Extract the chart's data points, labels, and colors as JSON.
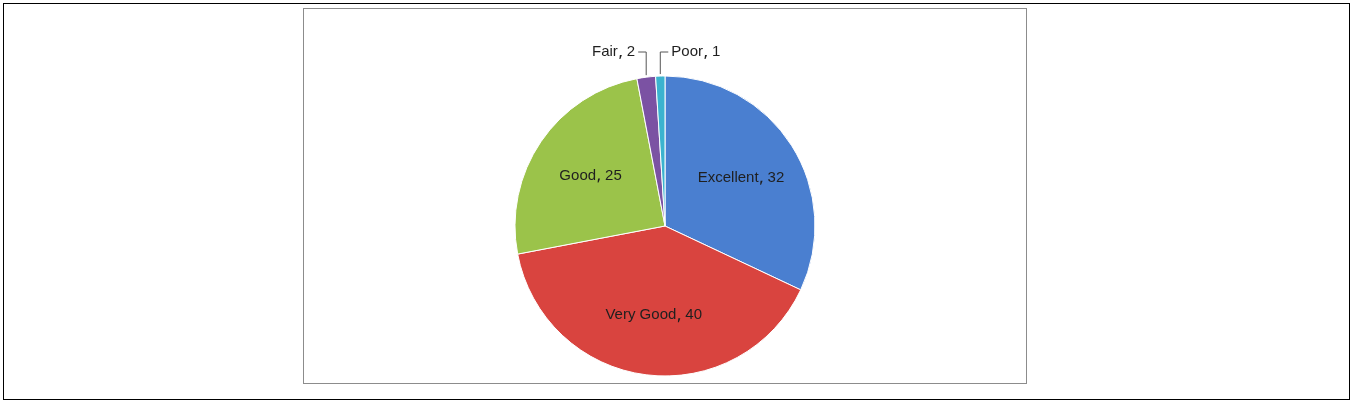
{
  "chart_data": {
    "type": "pie",
    "categories": [
      "Excellent",
      "Very Good",
      "Good",
      "Fair",
      "Poor"
    ],
    "values": [
      32,
      40,
      25,
      2,
      1
    ],
    "colors": [
      "#4a7fd0",
      "#d9443f",
      "#9bc34a",
      "#7b52a3",
      "#3bb3cf"
    ],
    "data_labels": true,
    "legend": false
  }
}
